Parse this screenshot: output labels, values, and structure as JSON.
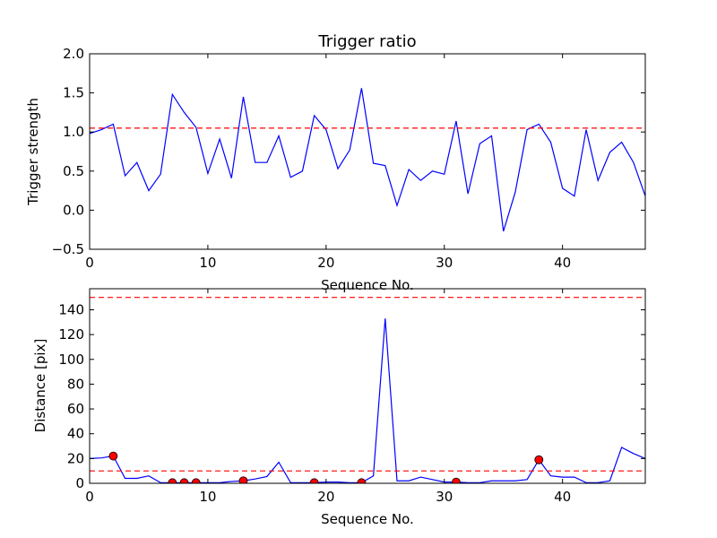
{
  "chart_data": [
    {
      "type": "line",
      "title": "Trigger ratio",
      "xlabel": "Sequence No.",
      "ylabel": "Trigger strength",
      "xlim": [
        0,
        47
      ],
      "ylim": [
        -0.5,
        2.0
      ],
      "xticks": [
        0,
        10,
        20,
        30,
        40
      ],
      "yticks": [
        -0.5,
        0.0,
        0.5,
        1.0,
        1.5,
        2.0
      ],
      "xtick_labels": [
        "0",
        "10",
        "20",
        "30",
        "40"
      ],
      "ytick_labels": [
        "−0.5",
        "0.0",
        "0.5",
        "1.0",
        "1.5",
        "2.0"
      ],
      "grid": false,
      "series": [
        {
          "color": "#0000ff",
          "x": [
            0,
            1,
            2,
            3,
            4,
            5,
            6,
            7,
            8,
            9,
            10,
            11,
            12,
            13,
            14,
            15,
            16,
            17,
            18,
            19,
            20,
            21,
            22,
            23,
            24,
            25,
            26,
            27,
            28,
            29,
            30,
            31,
            32,
            33,
            34,
            35,
            36,
            37,
            38,
            39,
            40,
            41,
            42,
            43,
            44,
            45,
            46,
            47
          ],
          "y": [
            0.98,
            1.03,
            1.1,
            0.44,
            0.61,
            0.25,
            0.46,
            1.48,
            1.25,
            1.06,
            0.47,
            0.91,
            0.41,
            1.45,
            0.61,
            0.61,
            0.95,
            0.42,
            0.5,
            1.21,
            1.03,
            0.53,
            0.77,
            1.56,
            0.6,
            0.57,
            0.06,
            0.52,
            0.38,
            0.5,
            0.46,
            1.14,
            0.21,
            0.85,
            0.95,
            -0.27,
            0.23,
            1.03,
            1.1,
            0.87,
            0.28,
            0.18,
            1.03,
            0.38,
            0.74,
            0.87,
            0.61,
            0.18
          ]
        }
      ],
      "hlines": [
        {
          "y": 1.05,
          "color": "#ff0000",
          "style": "dashed"
        }
      ]
    },
    {
      "type": "line",
      "title": "",
      "xlabel": "Sequence No.",
      "ylabel": "Distance [pix]",
      "xlim": [
        0,
        47
      ],
      "ylim": [
        0,
        157
      ],
      "xticks": [
        0,
        10,
        20,
        30,
        40
      ],
      "yticks": [
        0,
        20,
        40,
        60,
        80,
        100,
        120,
        140
      ],
      "xtick_labels": [
        "0",
        "10",
        "20",
        "30",
        "40"
      ],
      "ytick_labels": [
        "0",
        "20",
        "40",
        "60",
        "80",
        "100",
        "120",
        "140"
      ],
      "grid": false,
      "series": [
        {
          "color": "#0000ff",
          "x": [
            0,
            1,
            2,
            3,
            4,
            5,
            6,
            7,
            8,
            9,
            10,
            11,
            12,
            13,
            14,
            15,
            16,
            17,
            18,
            19,
            20,
            21,
            22,
            23,
            24,
            25,
            26,
            27,
            28,
            29,
            30,
            31,
            32,
            33,
            34,
            35,
            36,
            37,
            38,
            39,
            40,
            41,
            42,
            43,
            44,
            45,
            46,
            47
          ],
          "y": [
            20,
            20.5,
            22,
            4,
            4,
            6,
            0.5,
            0.5,
            0.5,
            0.5,
            0.5,
            0.5,
            1.5,
            2,
            3.5,
            5.5,
            17,
            0.5,
            0.5,
            0.5,
            1,
            1,
            0.5,
            0.5,
            6,
            133,
            2,
            2,
            5,
            3,
            1,
            1,
            0.5,
            0.5,
            2,
            2,
            2,
            3,
            19,
            6,
            5,
            5,
            0.5,
            0.5,
            2,
            29,
            24,
            20
          ]
        }
      ],
      "markers": {
        "color": "#ff0000",
        "x": [
          2,
          7,
          8,
          9,
          13,
          19,
          23,
          31,
          38
        ],
        "y": [
          22,
          0.5,
          0.5,
          0.5,
          2,
          0.5,
          0.5,
          1,
          19
        ]
      },
      "hlines": [
        {
          "y": 150,
          "color": "#ff0000",
          "style": "dashed"
        },
        {
          "y": 10,
          "color": "#ff0000",
          "style": "dashed"
        }
      ]
    }
  ]
}
